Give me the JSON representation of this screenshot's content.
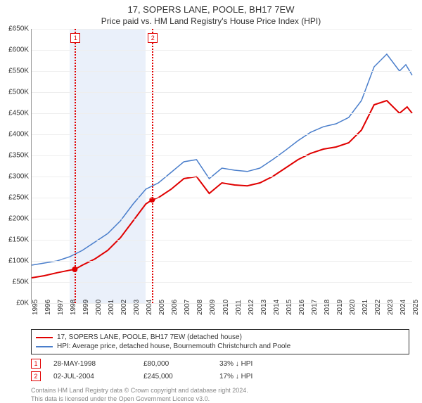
{
  "title": "17, SOPERS LANE, POOLE, BH17 7EW",
  "subtitle": "Price paid vs. HM Land Registry's House Price Index (HPI)",
  "chart": {
    "type": "line",
    "background_color": "#ffffff",
    "grid_color": "#eeeeee",
    "axis_color": "#999999",
    "y": {
      "min": 0,
      "max": 650,
      "step": 50,
      "prefix": "£",
      "suffix": "K",
      "ticks": [
        0,
        50,
        100,
        150,
        200,
        250,
        300,
        350,
        400,
        450,
        500,
        550,
        600,
        650
      ]
    },
    "x": {
      "min": 1995,
      "max": 2025,
      "step": 1,
      "ticks": [
        1995,
        1996,
        1997,
        1998,
        1999,
        2000,
        2001,
        2002,
        2003,
        2004,
        2005,
        2006,
        2007,
        2008,
        2009,
        2010,
        2011,
        2012,
        2013,
        2014,
        2015,
        2016,
        2017,
        2018,
        2019,
        2020,
        2021,
        2022,
        2023,
        2024,
        2025
      ]
    },
    "bands": [
      {
        "from": 1998,
        "to": 2004,
        "color": "#eaf0fa"
      }
    ],
    "vlines": [
      {
        "x": 1998.4,
        "label": "1"
      },
      {
        "x": 2004.5,
        "label": "2"
      }
    ],
    "series": [
      {
        "name": "price_paid",
        "color": "#e00000",
        "width": 2,
        "label": "17, SOPERS LANE, POOLE, BH17 7EW (detached house)",
        "data": [
          [
            1995,
            60
          ],
          [
            1996,
            65
          ],
          [
            1997,
            72
          ],
          [
            1998,
            78
          ],
          [
            1998.4,
            80
          ],
          [
            1999,
            90
          ],
          [
            2000,
            105
          ],
          [
            2001,
            125
          ],
          [
            2002,
            155
          ],
          [
            2003,
            195
          ],
          [
            2004,
            235
          ],
          [
            2004.5,
            245
          ],
          [
            2005,
            250
          ],
          [
            2006,
            270
          ],
          [
            2007,
            295
          ],
          [
            2008,
            300
          ],
          [
            2009,
            260
          ],
          [
            2010,
            285
          ],
          [
            2011,
            280
          ],
          [
            2012,
            278
          ],
          [
            2013,
            285
          ],
          [
            2014,
            300
          ],
          [
            2015,
            320
          ],
          [
            2016,
            340
          ],
          [
            2017,
            355
          ],
          [
            2018,
            365
          ],
          [
            2019,
            370
          ],
          [
            2020,
            380
          ],
          [
            2021,
            410
          ],
          [
            2022,
            470
          ],
          [
            2023,
            480
          ],
          [
            2024,
            450
          ],
          [
            2024.6,
            465
          ],
          [
            2025,
            450
          ]
        ],
        "markers": [
          {
            "x": 1998.4,
            "y": 80
          },
          {
            "x": 2004.5,
            "y": 245
          }
        ]
      },
      {
        "name": "hpi",
        "color": "#4a7ecb",
        "width": 1.5,
        "label": "HPI: Average price, detached house, Bournemouth Christchurch and Poole",
        "data": [
          [
            1995,
            90
          ],
          [
            1996,
            95
          ],
          [
            1997,
            100
          ],
          [
            1998,
            110
          ],
          [
            1999,
            125
          ],
          [
            2000,
            145
          ],
          [
            2001,
            165
          ],
          [
            2002,
            195
          ],
          [
            2003,
            235
          ],
          [
            2004,
            270
          ],
          [
            2005,
            285
          ],
          [
            2006,
            310
          ],
          [
            2007,
            335
          ],
          [
            2008,
            340
          ],
          [
            2009,
            295
          ],
          [
            2010,
            320
          ],
          [
            2011,
            315
          ],
          [
            2012,
            312
          ],
          [
            2013,
            320
          ],
          [
            2014,
            340
          ],
          [
            2015,
            362
          ],
          [
            2016,
            385
          ],
          [
            2017,
            405
          ],
          [
            2018,
            418
          ],
          [
            2019,
            425
          ],
          [
            2020,
            440
          ],
          [
            2021,
            480
          ],
          [
            2022,
            560
          ],
          [
            2023,
            590
          ],
          [
            2024,
            550
          ],
          [
            2024.5,
            565
          ],
          [
            2025,
            540
          ]
        ]
      }
    ]
  },
  "legend": {
    "items": [
      {
        "color": "#e00000",
        "text": "17, SOPERS LANE, POOLE, BH17 7EW (detached house)"
      },
      {
        "color": "#4a7ecb",
        "text": "HPI: Average price, detached house, Bournemouth Christchurch and Poole"
      }
    ]
  },
  "sales": [
    {
      "n": "1",
      "date": "28-MAY-1998",
      "price": "£80,000",
      "pct": "33% ↓ HPI"
    },
    {
      "n": "2",
      "date": "02-JUL-2004",
      "price": "£245,000",
      "pct": "17% ↓ HPI"
    }
  ],
  "footnote1": "Contains HM Land Registry data © Crown copyright and database right 2024.",
  "footnote2": "This data is licensed under the Open Government Licence v3.0."
}
